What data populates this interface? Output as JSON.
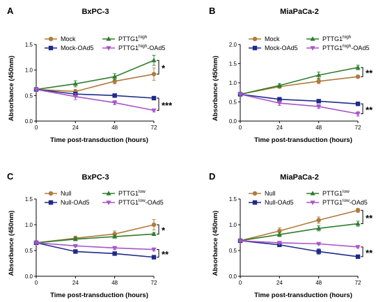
{
  "chart_data": [
    {
      "type": "line",
      "panel_label": "A",
      "title": "BxPC-3",
      "xlabel": "Time post-transduction (hours)",
      "ylabel": "Absorbance (450nm)",
      "x": [
        0,
        24,
        48,
        72
      ],
      "xticks": [
        "0",
        "24",
        "48",
        "72"
      ],
      "ylim": [
        0,
        1.5
      ],
      "yticks": [
        "0.0",
        "0.5",
        "1.0",
        "1.5"
      ],
      "legend": {
        "placement": "top-left",
        "columns": 2
      },
      "series": [
        {
          "name": "Mock",
          "name_sup": "",
          "name_post": "",
          "color": "#b07a3a",
          "marker": "circle",
          "values": [
            0.62,
            0.58,
            0.78,
            0.92
          ],
          "errors": [
            0.03,
            0.04,
            0.05,
            0.12
          ]
        },
        {
          "name": "PTTG1",
          "name_sup": "high",
          "name_post": "",
          "color": "#2e7d2e",
          "marker": "triangle-up",
          "values": [
            0.62,
            0.73,
            0.87,
            1.19
          ],
          "errors": [
            0.03,
            0.06,
            0.06,
            0.1
          ]
        },
        {
          "name": "Mock-OAd5",
          "name_sup": "",
          "name_post": "",
          "color": "#1f2a8a",
          "marker": "square",
          "values": [
            0.62,
            0.53,
            0.5,
            0.45
          ],
          "errors": [
            0.02,
            0.03,
            0.02,
            0.02
          ]
        },
        {
          "name": "PTTG1",
          "name_sup": "high",
          "name_post": "-OAd5",
          "color": "#a855c8",
          "marker": "triangle-down",
          "values": [
            0.62,
            0.48,
            0.36,
            0.21
          ],
          "errors": [
            0.02,
            0.06,
            0.04,
            0.03
          ]
        }
      ],
      "annotations": [
        {
          "text": "*",
          "y_top": 1.19,
          "y_bottom": 0.92
        },
        {
          "text": "***",
          "y_top": 0.45,
          "y_bottom": 0.21
        }
      ]
    },
    {
      "type": "line",
      "panel_label": "B",
      "title": "MiaPaCa-2",
      "xlabel": "Time post-transduction (hours)",
      "ylabel": "Absorbance (450nm)",
      "x": [
        0,
        24,
        48,
        72
      ],
      "xticks": [
        "0",
        "24",
        "48",
        "72"
      ],
      "ylim": [
        0,
        2.0
      ],
      "yticks": [
        "0.0",
        "0.5",
        "1.0",
        "1.5",
        "2.0"
      ],
      "legend": {
        "placement": "top-left",
        "columns": 2
      },
      "series": [
        {
          "name": "Mock",
          "name_sup": "",
          "name_post": "",
          "color": "#b07a3a",
          "marker": "circle",
          "values": [
            0.7,
            0.9,
            1.04,
            1.16
          ],
          "errors": [
            0.03,
            0.04,
            0.06,
            0.03
          ]
        },
        {
          "name": "PTTG1",
          "name_sup": "high",
          "name_post": "",
          "color": "#2e7d2e",
          "marker": "triangle-up",
          "values": [
            0.7,
            0.93,
            1.2,
            1.4
          ],
          "errors": [
            0.03,
            0.05,
            0.08,
            0.06
          ]
        },
        {
          "name": "Mock-OAd5",
          "name_sup": "",
          "name_post": "",
          "color": "#1f2a8a",
          "marker": "square",
          "values": [
            0.7,
            0.57,
            0.52,
            0.45
          ],
          "errors": [
            0.02,
            0.03,
            0.02,
            0.02
          ]
        },
        {
          "name": "PTTG1",
          "name_sup": "high",
          "name_post": "-OAd5",
          "color": "#a855c8",
          "marker": "triangle-down",
          "values": [
            0.7,
            0.47,
            0.38,
            0.19
          ],
          "errors": [
            0.02,
            0.06,
            0.05,
            0.06
          ]
        }
      ],
      "annotations": [
        {
          "text": "**",
          "y_top": 1.4,
          "y_bottom": 1.16
        },
        {
          "text": "**",
          "y_top": 0.45,
          "y_bottom": 0.19
        }
      ]
    },
    {
      "type": "line",
      "panel_label": "C",
      "title": "BxPC-3",
      "xlabel": "Time post-transduction (hours)",
      "ylabel": "Absorbance (450nm)",
      "x": [
        0,
        24,
        48,
        72
      ],
      "xticks": [
        "0",
        "24",
        "48",
        "72"
      ],
      "ylim": [
        0,
        1.5
      ],
      "yticks": [
        "0.0",
        "0.5",
        "1.0",
        "1.5"
      ],
      "legend": {
        "placement": "top-left",
        "columns": 2
      },
      "series": [
        {
          "name": "Null",
          "name_sup": "",
          "name_post": "",
          "color": "#b07a3a",
          "marker": "circle",
          "values": [
            0.65,
            0.74,
            0.82,
            1.0
          ],
          "errors": [
            0.03,
            0.04,
            0.06,
            0.1
          ]
        },
        {
          "name": "PTTG1",
          "name_sup": "low",
          "name_post": "",
          "color": "#2e7d2e",
          "marker": "triangle-up",
          "values": [
            0.65,
            0.72,
            0.77,
            0.82
          ],
          "errors": [
            0.02,
            0.03,
            0.03,
            0.03
          ]
        },
        {
          "name": "Null-OAd5",
          "name_sup": "",
          "name_post": "",
          "color": "#1f2a8a",
          "marker": "square",
          "values": [
            0.65,
            0.48,
            0.44,
            0.37
          ],
          "errors": [
            0.02,
            0.02,
            0.02,
            0.02
          ]
        },
        {
          "name": "PTTG1",
          "name_sup": "low",
          "name_post": "-OAd5",
          "color": "#a855c8",
          "marker": "triangle-down",
          "values": [
            0.65,
            0.59,
            0.55,
            0.52
          ],
          "errors": [
            0.02,
            0.02,
            0.03,
            0.03
          ]
        }
      ],
      "annotations": [
        {
          "text": "*",
          "y_top": 1.0,
          "y_bottom": 0.82
        },
        {
          "text": "**",
          "y_top": 0.52,
          "y_bottom": 0.37
        }
      ]
    },
    {
      "type": "line",
      "panel_label": "D",
      "title": "MiaPaCa-2",
      "xlabel": "Time post-transduction (hours)",
      "ylabel": "Absorbance (450nm)",
      "x": [
        0,
        24,
        48,
        72
      ],
      "xticks": [
        "0",
        "24",
        "48",
        "72"
      ],
      "ylim": [
        0,
        1.5
      ],
      "yticks": [
        "0.0",
        "0.5",
        "1.0",
        "1.5"
      ],
      "legend": {
        "placement": "top-left",
        "columns": 2
      },
      "series": [
        {
          "name": "Null",
          "name_sup": "",
          "name_post": "",
          "color": "#b07a3a",
          "marker": "circle",
          "values": [
            0.69,
            0.88,
            1.09,
            1.28
          ],
          "errors": [
            0.03,
            0.06,
            0.06,
            0.04
          ]
        },
        {
          "name": "PTTG1",
          "name_sup": "low",
          "name_post": "",
          "color": "#2e7d2e",
          "marker": "triangle-up",
          "values": [
            0.69,
            0.81,
            0.93,
            1.02
          ],
          "errors": [
            0.02,
            0.04,
            0.05,
            0.05
          ]
        },
        {
          "name": "Null-OAd5",
          "name_sup": "",
          "name_post": "",
          "color": "#1f2a8a",
          "marker": "square",
          "values": [
            0.69,
            0.61,
            0.48,
            0.38
          ],
          "errors": [
            0.02,
            0.03,
            0.05,
            0.02
          ]
        },
        {
          "name": "PTTG1",
          "name_sup": "low",
          "name_post": "-OAd5",
          "color": "#a855c8",
          "marker": "triangle-down",
          "values": [
            0.69,
            0.65,
            0.63,
            0.57
          ],
          "errors": [
            0.02,
            0.02,
            0.02,
            0.02
          ]
        }
      ],
      "annotations": [
        {
          "text": "**",
          "y_top": 1.28,
          "y_bottom": 1.02
        },
        {
          "text": "**",
          "y_top": 0.57,
          "y_bottom": 0.38
        }
      ]
    }
  ]
}
